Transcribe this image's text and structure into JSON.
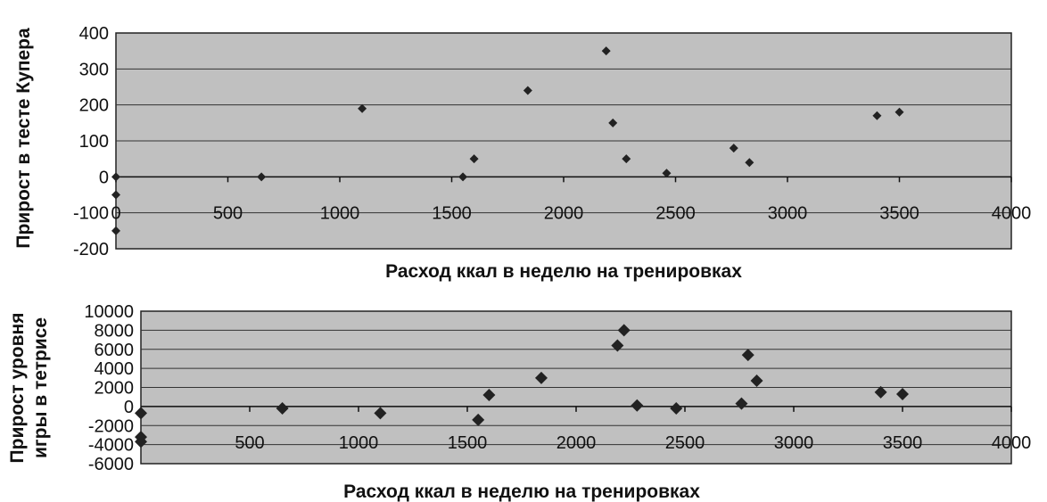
{
  "chart_data": [
    {
      "type": "scatter",
      "xlabel": "Расход ккал в неделю на тренировках",
      "ylabel": "Прирост в тесте Купера",
      "xlim": [
        0,
        4000
      ],
      "ylim": [
        -200,
        400
      ],
      "x_ticks": [
        "0",
        "500",
        "1000",
        "1500",
        "2000",
        "2500",
        "3000",
        "3500",
        "4000"
      ],
      "y_ticks": [
        "400",
        "300",
        "200",
        "100",
        "0",
        "-100",
        "-200"
      ],
      "grid": true,
      "background": "#c0c0c0",
      "marker_color": "#222222",
      "points": [
        {
          "x": 0,
          "y": 0
        },
        {
          "x": 0,
          "y": -50
        },
        {
          "x": 0,
          "y": -150
        },
        {
          "x": 650,
          "y": 0
        },
        {
          "x": 1100,
          "y": 190
        },
        {
          "x": 1550,
          "y": 0
        },
        {
          "x": 1600,
          "y": 50
        },
        {
          "x": 1840,
          "y": 240
        },
        {
          "x": 2190,
          "y": 350
        },
        {
          "x": 2220,
          "y": 150
        },
        {
          "x": 2280,
          "y": 50
        },
        {
          "x": 2460,
          "y": 10
        },
        {
          "x": 2760,
          "y": 80
        },
        {
          "x": 2830,
          "y": 40
        },
        {
          "x": 3400,
          "y": 170
        },
        {
          "x": 3500,
          "y": 180
        }
      ]
    },
    {
      "type": "scatter",
      "xlabel": "Расход ккал в неделю на тренировках",
      "ylabel_lines": [
        "Прирост уровня",
        "игры в тетрисе"
      ],
      "xlim": [
        0,
        4000
      ],
      "ylim": [
        -6000,
        10000
      ],
      "x_ticks": [
        "500",
        "1000",
        "1500",
        "2000",
        "2500",
        "3000",
        "3500",
        "4000"
      ],
      "y_ticks": [
        "10000",
        "8000",
        "6000",
        "4000",
        "2000",
        "0",
        "-2000",
        "-4000",
        "-6000"
      ],
      "grid": true,
      "background": "#c0c0c0",
      "marker_color": "#222222",
      "points": [
        {
          "x": 0,
          "y": -700
        },
        {
          "x": 0,
          "y": -3200
        },
        {
          "x": 0,
          "y": -3700
        },
        {
          "x": 650,
          "y": -200
        },
        {
          "x": 1100,
          "y": -700
        },
        {
          "x": 1550,
          "y": -1400
        },
        {
          "x": 1600,
          "y": 1200
        },
        {
          "x": 1840,
          "y": 3000
        },
        {
          "x": 2190,
          "y": 6400
        },
        {
          "x": 2220,
          "y": 8000
        },
        {
          "x": 2280,
          "y": 100
        },
        {
          "x": 2460,
          "y": -200
        },
        {
          "x": 2760,
          "y": 300
        },
        {
          "x": 2790,
          "y": 5400
        },
        {
          "x": 2830,
          "y": 2700
        },
        {
          "x": 3400,
          "y": 1500
        },
        {
          "x": 3500,
          "y": 1300
        }
      ]
    }
  ]
}
